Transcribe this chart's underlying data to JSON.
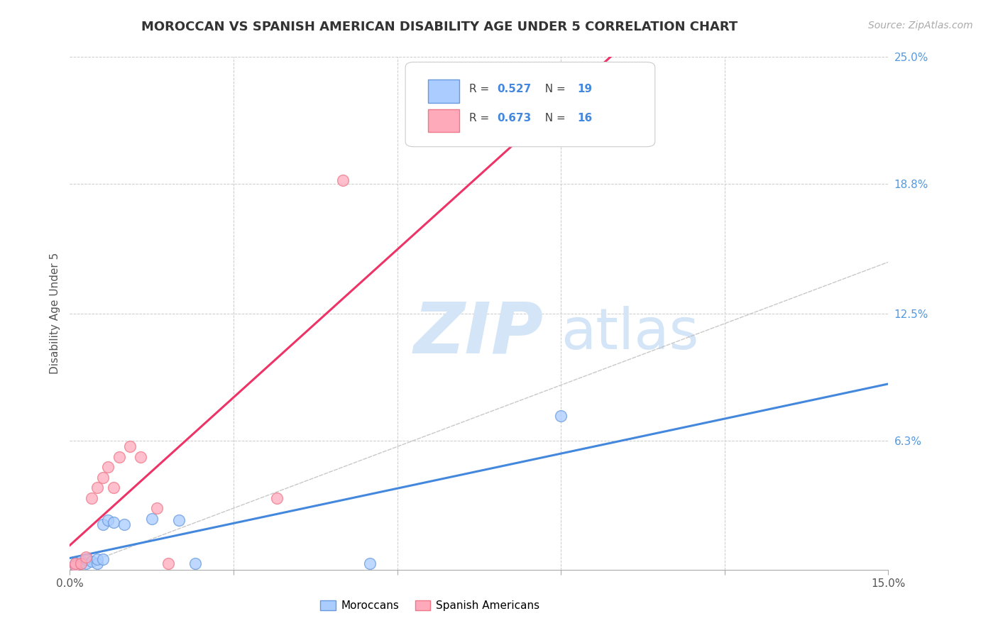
{
  "title": "MOROCCAN VS SPANISH AMERICAN DISABILITY AGE UNDER 5 CORRELATION CHART",
  "source": "Source: ZipAtlas.com",
  "ylabel": "Disability Age Under 5",
  "xlim": [
    0.0,
    0.15
  ],
  "ylim": [
    0.0,
    0.25
  ],
  "xticks": [
    0.0,
    0.03,
    0.06,
    0.09,
    0.12,
    0.15
  ],
  "xticklabels_show": [
    "0.0%",
    "",
    "",
    "",
    "",
    "15.0%"
  ],
  "yticks_right": [
    0.0,
    0.063,
    0.125,
    0.188,
    0.25
  ],
  "yticklabels_right": [
    "",
    "6.3%",
    "12.5%",
    "18.8%",
    "25.0%"
  ],
  "grid_color": "#cccccc",
  "background_color": "#ffffff",
  "moroccans_x": [
    0.001,
    0.001,
    0.002,
    0.002,
    0.003,
    0.003,
    0.004,
    0.005,
    0.005,
    0.006,
    0.006,
    0.007,
    0.008,
    0.01,
    0.015,
    0.02,
    0.023,
    0.055,
    0.09
  ],
  "moroccans_y": [
    0.002,
    0.003,
    0.003,
    0.004,
    0.003,
    0.005,
    0.004,
    0.003,
    0.005,
    0.005,
    0.022,
    0.024,
    0.023,
    0.022,
    0.025,
    0.024,
    0.003,
    0.003,
    0.075
  ],
  "spanish_x": [
    0.001,
    0.001,
    0.002,
    0.003,
    0.004,
    0.005,
    0.006,
    0.007,
    0.008,
    0.009,
    0.011,
    0.013,
    0.016,
    0.018,
    0.038,
    0.05
  ],
  "spanish_y": [
    0.002,
    0.003,
    0.003,
    0.006,
    0.035,
    0.04,
    0.045,
    0.05,
    0.04,
    0.055,
    0.06,
    0.055,
    0.03,
    0.003,
    0.035,
    0.19
  ],
  "moroccan_color": "#aaccff",
  "moroccan_edge": "#6699dd",
  "spanish_color": "#ffaabb",
  "spanish_edge": "#ee7788",
  "moroccan_line_color": "#4488dd",
  "spanish_line_color": "#ee3366",
  "legend_text_color": "#4488dd",
  "legend_label_color": "#333333",
  "watermark_color": "#d5e5f8",
  "title_fontsize": 13,
  "axis_label_fontsize": 11,
  "tick_fontsize": 11,
  "source_fontsize": 10,
  "right_tick_color": "#5599dd"
}
